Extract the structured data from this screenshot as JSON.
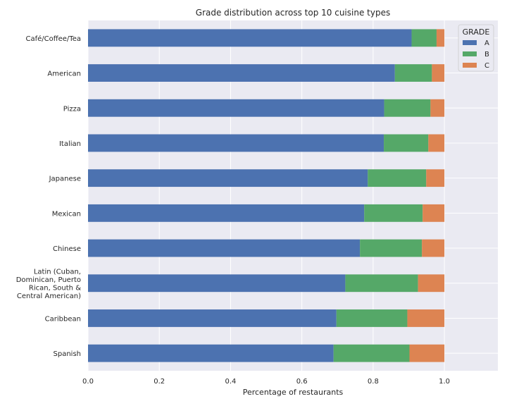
{
  "chart_data": {
    "type": "bar",
    "orientation": "horizontal",
    "stacked": true,
    "title": "Grade distribution across top 10 cuisine types",
    "xlabel": "Percentage of restaurants",
    "ylabel": "",
    "xlim": [
      0,
      1.15
    ],
    "xticks": [
      "0.0",
      "0.2",
      "0.4",
      "0.6",
      "0.8",
      "1.0"
    ],
    "grid": true,
    "legend_position": "top-right",
    "legend_title": "GRADE",
    "categories": [
      [
        "Café/Coffee/Tea"
      ],
      [
        "American"
      ],
      [
        "Pizza"
      ],
      [
        "Italian"
      ],
      [
        "Japanese"
      ],
      [
        "Mexican"
      ],
      [
        "Chinese"
      ],
      [
        "Latin (Cuban,",
        "Dominican, Puerto",
        "Rican, South &",
        "Central American)"
      ],
      [
        "Caribbean"
      ],
      [
        "Spanish"
      ]
    ],
    "series": [
      {
        "name": "A",
        "color": "#4c72b0",
        "values": [
          0.908,
          0.861,
          0.831,
          0.83,
          0.785,
          0.775,
          0.763,
          0.722,
          0.697,
          0.689
        ]
      },
      {
        "name": "B",
        "color": "#55a868",
        "values": [
          0.07,
          0.104,
          0.13,
          0.125,
          0.164,
          0.164,
          0.174,
          0.204,
          0.199,
          0.213
        ]
      },
      {
        "name": "C",
        "color": "#dd8452",
        "values": [
          0.022,
          0.035,
          0.039,
          0.045,
          0.051,
          0.061,
          0.063,
          0.074,
          0.104,
          0.098
        ]
      }
    ]
  }
}
